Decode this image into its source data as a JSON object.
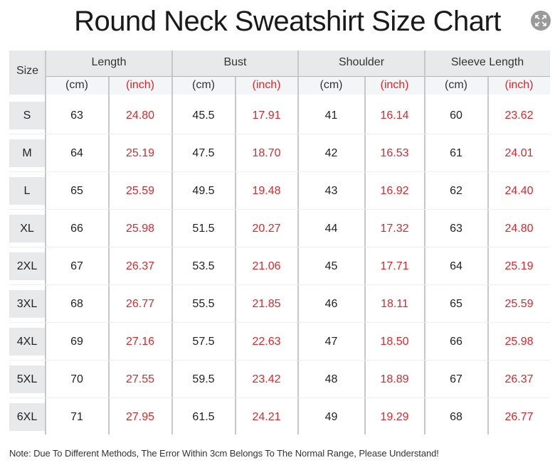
{
  "title": "Round Neck Sweatshirt Size Chart",
  "header": {
    "size_label": "Size",
    "groups": [
      "Length",
      "Bust",
      "Shoulder",
      "Sleeve Length"
    ],
    "units": [
      "(cm)",
      "(inch)"
    ]
  },
  "rows": [
    {
      "size": "S",
      "values": [
        "63",
        "24.80",
        "45.5",
        "17.91",
        "41",
        "16.14",
        "60",
        "23.62"
      ]
    },
    {
      "size": "M",
      "values": [
        "64",
        "25.19",
        "47.5",
        "18.70",
        "42",
        "16.53",
        "61",
        "24.01"
      ]
    },
    {
      "size": "L",
      "values": [
        "65",
        "25.59",
        "49.5",
        "19.48",
        "43",
        "16.92",
        "62",
        "24.40"
      ]
    },
    {
      "size": "XL",
      "values": [
        "66",
        "25.98",
        "51.5",
        "20.27",
        "44",
        "17.32",
        "63",
        "24.80"
      ]
    },
    {
      "size": "2XL",
      "values": [
        "67",
        "26.37",
        "53.5",
        "21.06",
        "45",
        "17.71",
        "64",
        "25.19"
      ]
    },
    {
      "size": "3XL",
      "values": [
        "68",
        "26.77",
        "55.5",
        "21.85",
        "46",
        "18.11",
        "65",
        "25.59"
      ]
    },
    {
      "size": "4XL",
      "values": [
        "69",
        "27.16",
        "57.5",
        "22.63",
        "47",
        "18.50",
        "66",
        "25.98"
      ]
    },
    {
      "size": "5XL",
      "values": [
        "70",
        "27.55",
        "59.5",
        "23.42",
        "48",
        "18.89",
        "67",
        "26.37"
      ]
    },
    {
      "size": "6XL",
      "values": [
        "71",
        "27.95",
        "61.5",
        "24.21",
        "49",
        "19.29",
        "68",
        "26.77"
      ]
    }
  ],
  "note": "Note: Due To Different Methods, The Error Within 3cm Belongs To The Normal Range, Please Understand!",
  "colors": {
    "inch": "#e0262b",
    "header_bg": "#e8e9ea",
    "grid": "#c6c7c8"
  },
  "icons": {
    "expand": "expand-icon"
  }
}
